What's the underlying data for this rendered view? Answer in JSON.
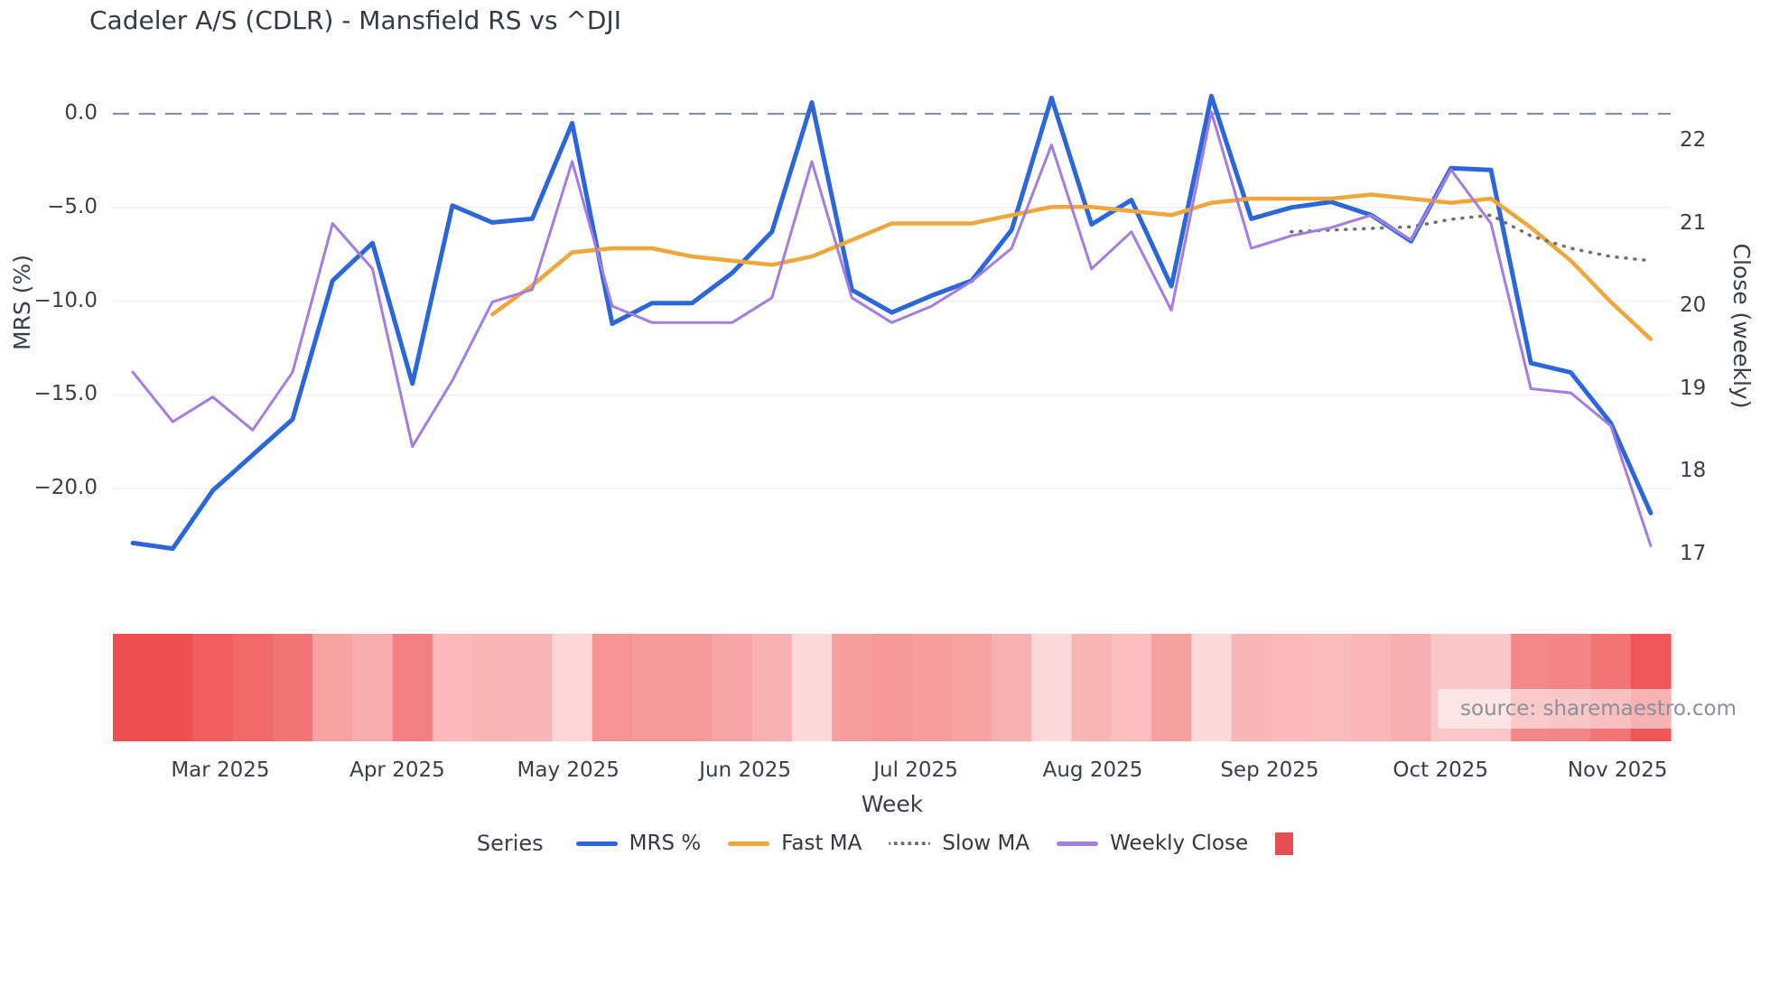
{
  "title": "Cadeler A/S (CDLR) - Mansfield RS vs ^DJI",
  "source": "source: sharemaestro.com",
  "legend": {
    "title": "Series",
    "items": [
      {
        "label": "MRS %",
        "swatch": "line",
        "color": "#2b66db"
      },
      {
        "label": "Fast MA",
        "swatch": "line",
        "color": "#efa63b"
      },
      {
        "label": "Slow MA",
        "swatch": "dotted",
        "color": "#707070"
      },
      {
        "label": "Weekly Close",
        "swatch": "line",
        "color": "#a37de0"
      },
      {
        "label": "",
        "swatch": "square",
        "color": "#e4504f"
      }
    ]
  },
  "chart_data": {
    "type": "line",
    "title": "Cadeler A/S (CDLR) - Mansfield RS vs ^DJI",
    "xlabel": "Week",
    "ylabel_left": "MRS (%)",
    "ylabel_right": "Close (weekly)",
    "x_count": 39,
    "x_ticks": [
      {
        "label": "Mar 2025",
        "i": 2.19
      },
      {
        "label": "Apr 2025",
        "i": 6.62
      },
      {
        "label": "May 2025",
        "i": 10.9
      },
      {
        "label": "Jun 2025",
        "i": 15.33
      },
      {
        "label": "Jul 2025",
        "i": 19.6
      },
      {
        "label": "Aug 2025",
        "i": 24.03
      },
      {
        "label": "Sep 2025",
        "i": 28.46
      },
      {
        "label": "Oct 2025",
        "i": 32.74
      },
      {
        "label": "Nov 2025",
        "i": 37.17
      }
    ],
    "y_left": {
      "ticks": [
        {
          "label": "0.0",
          "value": 0
        },
        {
          "label": "−5.0",
          "value": -5
        },
        {
          "label": "−10.0",
          "value": -10
        },
        {
          "label": "−15.0",
          "value": -15
        },
        {
          "label": "−20.0",
          "value": -20
        }
      ],
      "grid_values": [
        -5,
        -10,
        -15,
        -20
      ],
      "range": [
        -24.5,
        1.5
      ]
    },
    "y_right": {
      "ticks": [
        {
          "label": "22",
          "value": 22
        },
        {
          "label": "21",
          "value": 21
        },
        {
          "label": "20",
          "value": 20
        },
        {
          "label": "19",
          "value": 19
        },
        {
          "label": "18",
          "value": 18
        },
        {
          "label": "17",
          "value": 17
        }
      ],
      "range": [
        16.6,
        22.7
      ]
    },
    "zero_line": {
      "value": 0,
      "color": "#8590a2"
    },
    "grid_color": "#eef0f3",
    "series": [
      {
        "name": "MRS %",
        "axis": "left",
        "color": "#2b66db",
        "width": 5,
        "values": [
          -22.9,
          -23.2,
          -20.1,
          -18.2,
          -16.3,
          -8.9,
          -6.9,
          -14.4,
          -4.9,
          -5.8,
          -5.6,
          -0.5,
          -11.2,
          -10.1,
          -10.1,
          -8.5,
          -6.3,
          0.6,
          -9.4,
          -10.6,
          -9.7,
          -8.9,
          -6.2,
          0.85,
          -5.9,
          -4.6,
          -9.2,
          0.95,
          -5.6,
          -5.0,
          -4.7,
          -5.4,
          -6.8,
          -2.9,
          -3.0,
          -13.3,
          -13.8,
          -16.5,
          -21.3
        ]
      },
      {
        "name": "Fast MA",
        "axis": "right",
        "color": "#efa63b",
        "width": 4.5,
        "values": [
          null,
          null,
          null,
          null,
          null,
          null,
          null,
          null,
          null,
          19.9,
          20.25,
          20.65,
          20.7,
          20.7,
          20.6,
          20.55,
          20.5,
          20.6,
          20.8,
          21.0,
          21.0,
          21.0,
          21.1,
          21.2,
          21.2,
          21.15,
          21.1,
          21.25,
          21.3,
          21.3,
          21.3,
          21.35,
          21.3,
          21.25,
          21.3,
          20.95,
          20.55,
          20.05,
          19.6
        ]
      },
      {
        "name": "Slow MA",
        "axis": "right",
        "color": "#707070",
        "width": 3.5,
        "style": "dotted",
        "values": [
          null,
          null,
          null,
          null,
          null,
          null,
          null,
          null,
          null,
          null,
          null,
          null,
          null,
          null,
          null,
          null,
          null,
          null,
          null,
          null,
          null,
          null,
          null,
          null,
          null,
          null,
          null,
          null,
          null,
          20.9,
          20.92,
          20.94,
          20.96,
          21.05,
          21.1,
          20.85,
          20.7,
          20.6,
          20.55
        ]
      },
      {
        "name": "Weekly Close",
        "axis": "right",
        "color": "#a37de0",
        "width": 3,
        "values": [
          19.2,
          18.6,
          18.9,
          18.5,
          19.2,
          21.0,
          20.45,
          18.3,
          19.1,
          20.05,
          20.2,
          21.75,
          20.0,
          19.8,
          19.8,
          19.8,
          20.1,
          21.75,
          20.1,
          19.8,
          20.0,
          20.3,
          20.7,
          21.95,
          20.45,
          20.9,
          19.95,
          22.35,
          20.7,
          20.85,
          20.95,
          21.1,
          20.8,
          21.65,
          21.0,
          19.0,
          18.95,
          18.55,
          17.1
        ]
      }
    ],
    "heat_strip": {
      "metric": "MRS %",
      "color_low": "#fdd8da",
      "color_high": "#ee4f50",
      "max_abs": 22.5
    }
  }
}
